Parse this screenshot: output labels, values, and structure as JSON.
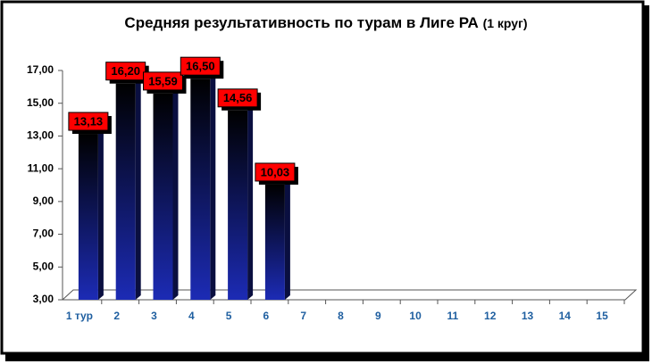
{
  "chart_data": {
    "type": "bar",
    "title": "Средняя результативность по турам в Лиге РА",
    "subtitle": "(1 круг)",
    "categories": [
      "1 тур",
      "2",
      "3",
      "4",
      "5",
      "6",
      "7",
      "8",
      "9",
      "10",
      "11",
      "12",
      "13",
      "14",
      "15"
    ],
    "values": [
      13.13,
      16.2,
      15.59,
      16.5,
      14.56,
      10.03,
      null,
      null,
      null,
      null,
      null,
      null,
      null,
      null,
      null
    ],
    "value_labels": [
      "13,13",
      "16,20",
      "15,59",
      "16,50",
      "14,56",
      "10,03",
      null,
      null,
      null,
      null,
      null,
      null,
      null,
      null,
      null
    ],
    "color": "#1c2bb5",
    "label_color": "#ff0000",
    "ylim": [
      3,
      17
    ],
    "yticks": [
      {
        "value": 3,
        "label": "3,00"
      },
      {
        "value": 5,
        "label": "5,00"
      },
      {
        "value": 7,
        "label": "7,00"
      },
      {
        "value": 9,
        "label": "9,00"
      },
      {
        "value": 11,
        "label": "11,00"
      },
      {
        "value": 13,
        "label": "13,00"
      },
      {
        "value": 15,
        "label": "15,00"
      },
      {
        "value": 17,
        "label": "17,00"
      }
    ],
    "grid": false
  }
}
